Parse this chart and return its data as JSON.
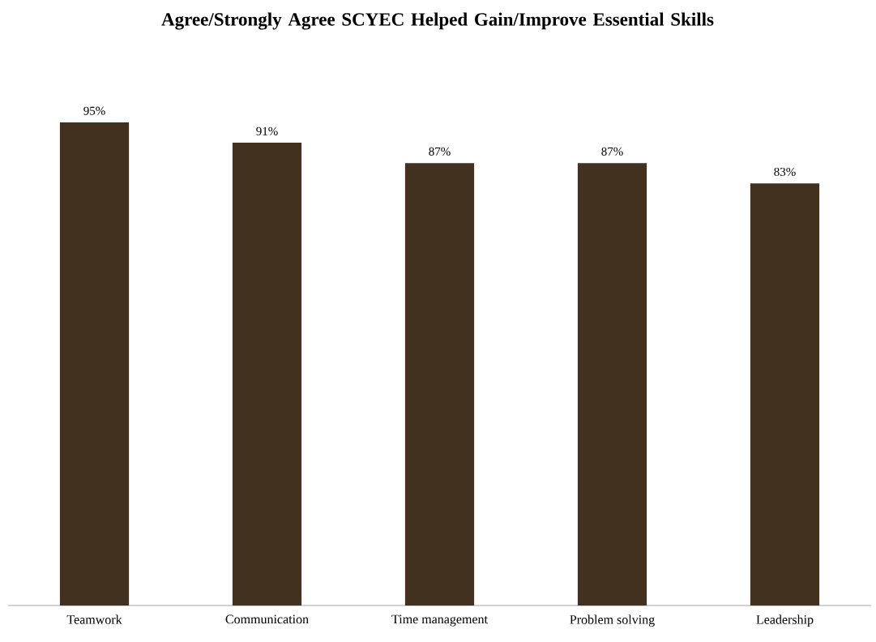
{
  "chart_data": {
    "type": "bar",
    "title": "Agree/Strongly Agree SCYEC Helped Gain/Improve Essential Skills",
    "categories": [
      "Teamwork",
      "Communication",
      "Time management",
      "Problem solving",
      "Leadership"
    ],
    "values": [
      95,
      91,
      87,
      87,
      83
    ],
    "value_labels": [
      "95%",
      "91%",
      "87%",
      "87%",
      "83%"
    ],
    "color": "#433120"
  }
}
